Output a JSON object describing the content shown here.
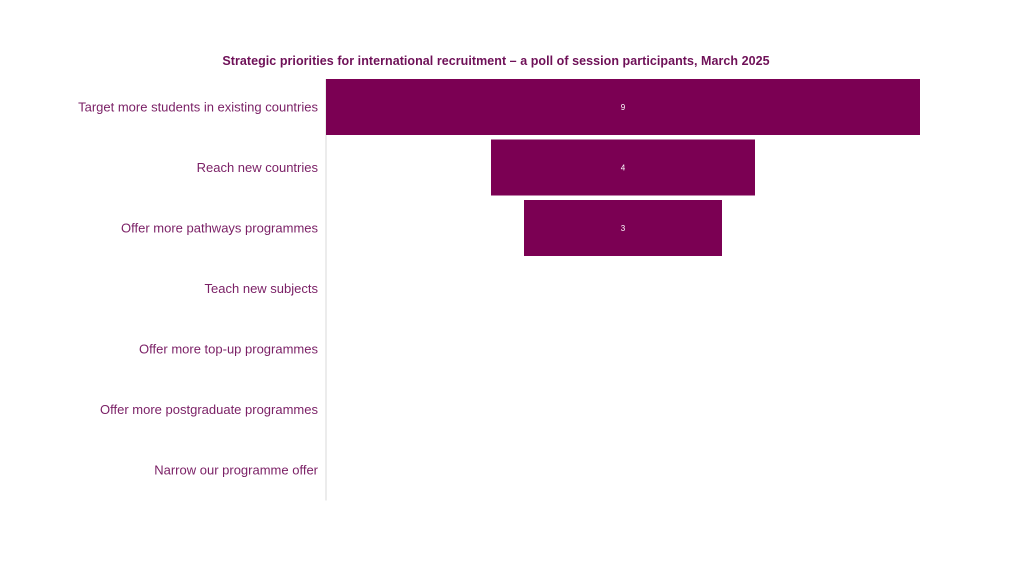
{
  "chart_data": {
    "type": "bar",
    "subtype": "funnel",
    "orientation": "horizontal",
    "title": "Strategic priorities for international recruitment – a poll of session participants, March 2025",
    "categories": [
      "Target more students in existing countries",
      "Reach new countries",
      "Offer more pathways programmes",
      "Teach new subjects",
      "Offer more top-up programmes",
      "Offer more postgraduate programmes",
      "Narrow our programme offer"
    ],
    "values": [
      9,
      4,
      3,
      0,
      0,
      0,
      0
    ],
    "value_labels_shown": [
      true,
      true,
      true,
      false,
      false,
      false,
      false
    ],
    "xlim": [
      0,
      9
    ],
    "grid": false,
    "legend": "none",
    "colors": {
      "bar": "#7b0053",
      "label_text": "#7a1f65",
      "title_text": "#6e1057",
      "axis_line": "#d9d9d9",
      "value_text": "#ffffff"
    }
  }
}
